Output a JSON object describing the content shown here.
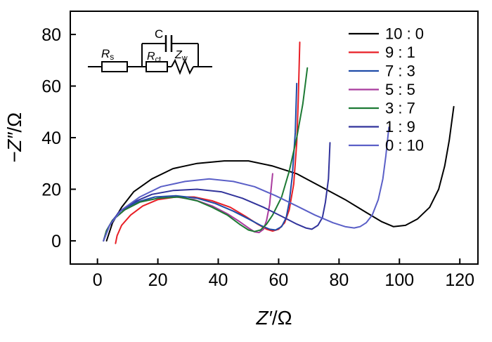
{
  "figure": {
    "xlabel_var": "Z′",
    "xlabel_rest": "/Ω",
    "ylabel_var": "−Z″",
    "ylabel_rest": "/Ω"
  },
  "circuit": {
    "rs_main": "R",
    "rs_sub": "s",
    "c_label": "C",
    "rct_main": "R",
    "rct_sub": "ct",
    "zw_main": "Z",
    "zw_sub": "w"
  },
  "chart_data": {
    "type": "line",
    "title": "",
    "xlabel": "Z'/Ω",
    "ylabel": "-Z\"/Ω",
    "xlim": [
      -9,
      126
    ],
    "ylim": [
      -9,
      89
    ],
    "x_ticks": [
      0,
      20,
      40,
      60,
      80,
      100,
      120
    ],
    "y_ticks": [
      0,
      20,
      40,
      60,
      80
    ],
    "grid": false,
    "legend_position": "top-right",
    "series": [
      {
        "name": "10 : 0",
        "color": "#000000",
        "points": [
          [
            3,
            0
          ],
          [
            5,
            7
          ],
          [
            8,
            13
          ],
          [
            12,
            19
          ],
          [
            18,
            24
          ],
          [
            25,
            28
          ],
          [
            33,
            30
          ],
          [
            42,
            31
          ],
          [
            50,
            31
          ],
          [
            58,
            29
          ],
          [
            66,
            26
          ],
          [
            74,
            21
          ],
          [
            82,
            16
          ],
          [
            89,
            11
          ],
          [
            94,
            7.5
          ],
          [
            98,
            5.5
          ],
          [
            102,
            6
          ],
          [
            106,
            8.5
          ],
          [
            110,
            13
          ],
          [
            113,
            20
          ],
          [
            115,
            29
          ],
          [
            116.5,
            39
          ],
          [
            118,
            52
          ]
        ]
      },
      {
        "name": "9 : 1",
        "color": "#e81e25",
        "points": [
          [
            6,
            -1
          ],
          [
            6.5,
            2
          ],
          [
            8,
            6
          ],
          [
            11,
            10
          ],
          [
            15,
            13.5
          ],
          [
            20,
            16
          ],
          [
            26,
            17
          ],
          [
            32,
            17
          ],
          [
            38,
            15.5
          ],
          [
            44,
            13
          ],
          [
            49,
            9.5
          ],
          [
            53,
            6.5
          ],
          [
            56,
            4.5
          ],
          [
            58,
            3.8
          ],
          [
            60,
            4.5
          ],
          [
            62,
            7
          ],
          [
            63.5,
            12
          ],
          [
            65,
            22
          ],
          [
            66,
            38
          ],
          [
            66.5,
            55
          ],
          [
            67,
            77
          ]
        ]
      },
      {
        "name": "7 : 3",
        "color": "#1f4ca8",
        "points": [
          [
            2,
            0
          ],
          [
            3,
            4
          ],
          [
            5,
            8
          ],
          [
            8,
            12
          ],
          [
            13,
            15
          ],
          [
            19,
            17
          ],
          [
            26,
            17.5
          ],
          [
            33,
            16.5
          ],
          [
            39,
            14.5
          ],
          [
            45,
            11.5
          ],
          [
            50,
            8.5
          ],
          [
            54,
            6
          ],
          [
            57,
            4.5
          ],
          [
            59,
            4.2
          ],
          [
            61,
            5.5
          ],
          [
            62.5,
            9
          ],
          [
            63.5,
            15
          ],
          [
            64.5,
            25
          ],
          [
            65.5,
            42
          ],
          [
            66,
            61
          ]
        ]
      },
      {
        "name": "5 : 5",
        "color": "#a93b9e",
        "points": [
          [
            2,
            0
          ],
          [
            3,
            4
          ],
          [
            5,
            8
          ],
          [
            9,
            12
          ],
          [
            14,
            15
          ],
          [
            20,
            16.5
          ],
          [
            26,
            17
          ],
          [
            32,
            16
          ],
          [
            38,
            13.5
          ],
          [
            43,
            10.5
          ],
          [
            47,
            7.5
          ],
          [
            50,
            5
          ],
          [
            52,
            3.5
          ],
          [
            53.5,
            3.2
          ],
          [
            55,
            4.5
          ],
          [
            56,
            8
          ],
          [
            57,
            14
          ],
          [
            57.5,
            20
          ],
          [
            58,
            26
          ]
        ]
      },
      {
        "name": "3 : 7",
        "color": "#1d7a34",
        "points": [
          [
            2,
            0
          ],
          [
            3,
            4
          ],
          [
            5,
            8
          ],
          [
            9,
            12
          ],
          [
            14,
            15
          ],
          [
            20,
            16.5
          ],
          [
            27,
            17
          ],
          [
            33,
            15.5
          ],
          [
            38,
            13
          ],
          [
            43,
            10
          ],
          [
            47,
            6.5
          ],
          [
            50,
            4.2
          ],
          [
            52,
            3.6
          ],
          [
            54,
            4.2
          ],
          [
            56,
            6.5
          ],
          [
            58,
            10
          ],
          [
            61,
            17
          ],
          [
            63.5,
            27
          ],
          [
            66,
            40
          ],
          [
            68,
            53
          ],
          [
            69.5,
            67
          ]
        ]
      },
      {
        "name": "1 : 9",
        "color": "#31339b",
        "points": [
          [
            2,
            0
          ],
          [
            4,
            6
          ],
          [
            7,
            11
          ],
          [
            12,
            15
          ],
          [
            18,
            18
          ],
          [
            25,
            19.5
          ],
          [
            33,
            20
          ],
          [
            41,
            19
          ],
          [
            48,
            16.5
          ],
          [
            55,
            13
          ],
          [
            61,
            9.5
          ],
          [
            66,
            6.5
          ],
          [
            69,
            5
          ],
          [
            71,
            4.5
          ],
          [
            73,
            6
          ],
          [
            74.5,
            9
          ],
          [
            75.5,
            15
          ],
          [
            76.5,
            24
          ],
          [
            77,
            38
          ]
        ]
      },
      {
        "name": "0 : 10",
        "color": "#5a5fc7",
        "points": [
          [
            2,
            0
          ],
          [
            4,
            6
          ],
          [
            8,
            12
          ],
          [
            14,
            17
          ],
          [
            21,
            21
          ],
          [
            29,
            23
          ],
          [
            37,
            24
          ],
          [
            45,
            23
          ],
          [
            52,
            21
          ],
          [
            59,
            17.5
          ],
          [
            66,
            13.5
          ],
          [
            72,
            10
          ],
          [
            78,
            7
          ],
          [
            82,
            5.5
          ],
          [
            85,
            5
          ],
          [
            87,
            5.5
          ],
          [
            89,
            7
          ],
          [
            91,
            10
          ],
          [
            93,
            16
          ],
          [
            94.5,
            24
          ],
          [
            95.5,
            33
          ],
          [
            96.5,
            44
          ]
        ]
      }
    ]
  }
}
